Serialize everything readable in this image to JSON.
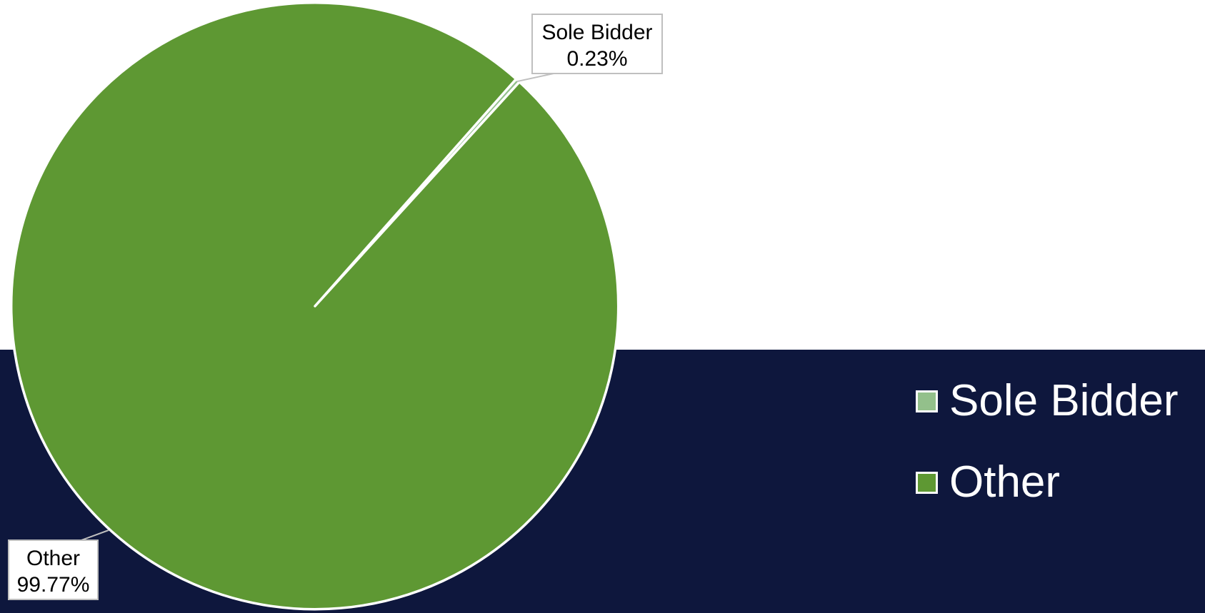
{
  "colors": {
    "band": "#0e173d",
    "page": "#ffffff"
  },
  "chart_data": {
    "type": "pie",
    "title": "",
    "slices": [
      {
        "label": "Sole Bidder",
        "value": 0.23,
        "display": "0.23%",
        "color": "#93c08b"
      },
      {
        "label": "Other",
        "value": 99.77,
        "display": "99.77%",
        "color": "#5e9833"
      }
    ],
    "legend": {
      "position": "right",
      "items": [
        "Sole Bidder",
        "Other"
      ]
    }
  }
}
